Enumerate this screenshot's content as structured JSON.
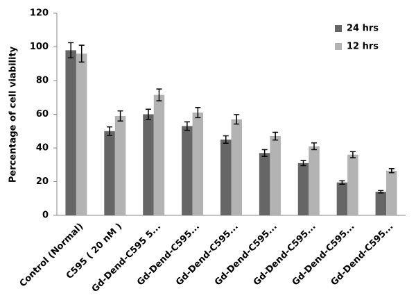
{
  "chart_data": {
    "type": "bar",
    "ylabel": "Percentage of cell viability",
    "categories": [
      "Control (Normal)",
      "C595 ( 20 nM )",
      "Gd-Dend-C595 5...",
      "Gd-Dend-C595...",
      "Gd-Dend-C595...",
      "Gd-Dend-C595...",
      "Gd-Dend-C595...",
      "Gd-Dend-C595...",
      "Gd-Dend-C595..."
    ],
    "series": [
      {
        "name": "24 hrs",
        "color": "#666666",
        "values": [
          98,
          50,
          60,
          53,
          45,
          37,
          31,
          19.5,
          14
        ],
        "errors": [
          4.5,
          2.5,
          3,
          2.5,
          2.2,
          2,
          1.5,
          1,
          0.7
        ]
      },
      {
        "name": "12 hrs",
        "color": "#b3b3b3",
        "values": [
          96,
          59,
          71.5,
          61,
          57,
          47,
          41,
          36,
          26.5
        ],
        "errors": [
          5,
          3,
          3.5,
          3,
          2.8,
          2.3,
          2,
          1.8,
          1.2
        ]
      }
    ],
    "ylim": [
      0,
      120
    ],
    "yticks": [
      0,
      20,
      40,
      60,
      80,
      100,
      120
    ],
    "grid": false,
    "legend": "upper right"
  }
}
